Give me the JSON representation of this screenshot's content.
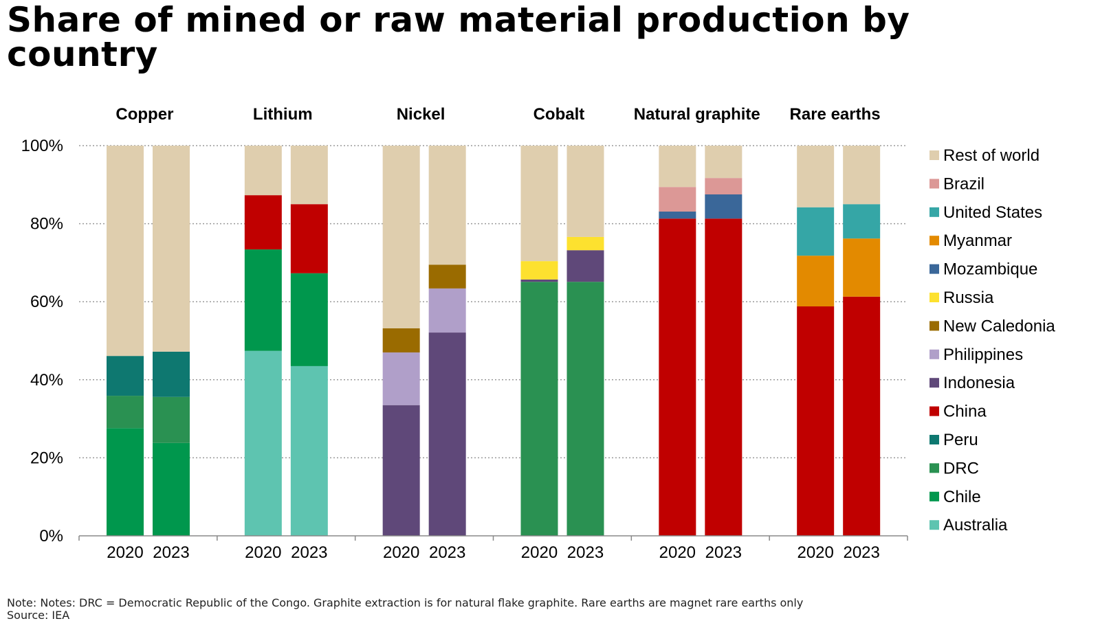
{
  "title": "Share of mined or raw material production by country",
  "note": "Note: Notes: DRC = Democratic Republic of the Congo. Graphite extraction is for natural flake graphite. Rare earths are magnet rare earths only",
  "source": "Source: IEA",
  "chart_data": {
    "type": "bar",
    "stacked": true,
    "ylim": [
      0,
      100
    ],
    "yticks": [
      "0%",
      "20%",
      "40%",
      "60%",
      "80%",
      "100%"
    ],
    "grid": true,
    "legend_placement": "right",
    "colors": {
      "Rest of world": "#dfceae",
      "Brazil": "#dc9896",
      "United States": "#35a6a6",
      "Myanmar": "#e38a00",
      "Mozambique": "#3a6799",
      "Russia": "#fde12f",
      "New Caledonia": "#9a6b00",
      "Philippines": "#b09fc9",
      "Indonesia": "#5f4879",
      "China": "#c00000",
      "Peru": "#0e7870",
      "DRC": "#2a9152",
      "Chile": "#00974d",
      "Australia": "#5ec4b0"
    },
    "legend": [
      "Rest of world",
      "Brazil",
      "United States",
      "Myanmar",
      "Mozambique",
      "Russia",
      "New Caledonia",
      "Philippines",
      "Indonesia",
      "China",
      "Peru",
      "DRC",
      "Chile",
      "Australia"
    ],
    "groups": [
      {
        "name": "Copper",
        "bars": [
          {
            "year": "2020",
            "segments": [
              [
                "Chile",
                27.6
              ],
              [
                "DRC",
                8.3
              ],
              [
                "Peru",
                10.2
              ],
              [
                "Rest of world",
                53.9
              ]
            ]
          },
          {
            "year": "2023",
            "segments": [
              [
                "Chile",
                23.8
              ],
              [
                "DRC",
                11.8
              ],
              [
                "Peru",
                11.6
              ],
              [
                "Rest of world",
                52.8
              ]
            ]
          }
        ]
      },
      {
        "name": "Lithium",
        "bars": [
          {
            "year": "2020",
            "segments": [
              [
                "Australia",
                47.4
              ],
              [
                "Chile",
                26.0
              ],
              [
                "China",
                13.9
              ],
              [
                "Rest of world",
                12.7
              ]
            ]
          },
          {
            "year": "2023",
            "segments": [
              [
                "Australia",
                43.5
              ],
              [
                "Chile",
                23.8
              ],
              [
                "China",
                17.7
              ],
              [
                "Rest of world",
                15.0
              ]
            ]
          }
        ]
      },
      {
        "name": "Nickel",
        "bars": [
          {
            "year": "2020",
            "segments": [
              [
                "Indonesia",
                33.5
              ],
              [
                "Philippines",
                13.5
              ],
              [
                "New Caledonia",
                6.2
              ],
              [
                "Rest of world",
                46.8
              ]
            ]
          },
          {
            "year": "2023",
            "segments": [
              [
                "Indonesia",
                52.1
              ],
              [
                "Philippines",
                11.3
              ],
              [
                "New Caledonia",
                6.1
              ],
              [
                "Rest of world",
                30.5
              ]
            ]
          }
        ]
      },
      {
        "name": "Cobalt",
        "bars": [
          {
            "year": "2020",
            "segments": [
              [
                "DRC",
                65.1
              ],
              [
                "Indonesia",
                0.6
              ],
              [
                "Russia",
                4.7
              ],
              [
                "Rest of world",
                29.6
              ]
            ]
          },
          {
            "year": "2023",
            "segments": [
              [
                "DRC",
                65.1
              ],
              [
                "Indonesia",
                8.1
              ],
              [
                "Russia",
                3.4
              ],
              [
                "Rest of world",
                23.4
              ]
            ]
          }
        ]
      },
      {
        "name": "Natural graphite",
        "bars": [
          {
            "year": "2020",
            "segments": [
              [
                "China",
                81.3
              ],
              [
                "Mozambique",
                1.8
              ],
              [
                "Brazil",
                6.3
              ],
              [
                "Rest of world",
                10.6
              ]
            ]
          },
          {
            "year": "2023",
            "segments": [
              [
                "China",
                81.3
              ],
              [
                "Mozambique",
                6.2
              ],
              [
                "Brazil",
                4.2
              ],
              [
                "Rest of world",
                8.3
              ]
            ]
          }
        ]
      },
      {
        "name": "Rare earths",
        "bars": [
          {
            "year": "2020",
            "segments": [
              [
                "China",
                58.8
              ],
              [
                "Myanmar",
                13.0
              ],
              [
                "United States",
                12.4
              ],
              [
                "Rest of world",
                15.8
              ]
            ]
          },
          {
            "year": "2023",
            "segments": [
              [
                "China",
                61.3
              ],
              [
                "Myanmar",
                14.9
              ],
              [
                "United States",
                8.8
              ],
              [
                "Rest of world",
                15.0
              ]
            ]
          }
        ]
      }
    ]
  }
}
